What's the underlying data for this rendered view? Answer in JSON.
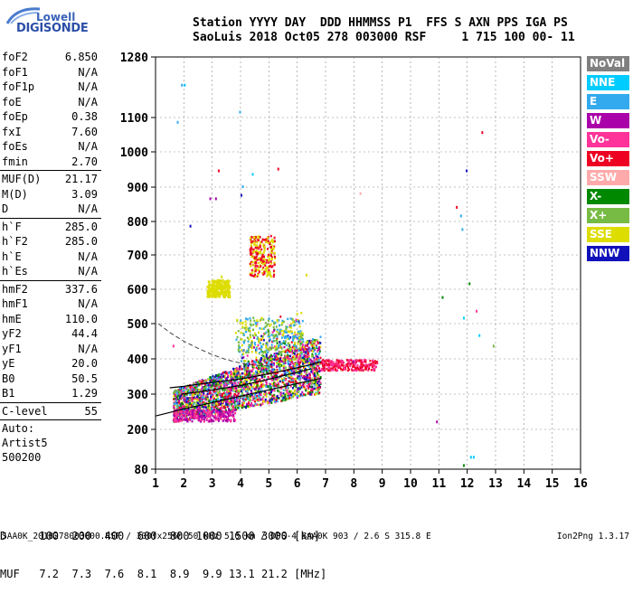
{
  "logo": {
    "line1": "Lowell",
    "line2": "DIGISONDE"
  },
  "header": {
    "line1": "Station YYYY DAY  DDD HHMMSS P1  FFS S AXN PPS IGA PS",
    "line2": "SaoLuis 2018 Oct05 278 003000 RSF     1 715 100 00- 11"
  },
  "params": [
    {
      "group": [
        [
          "foF2",
          "6.850"
        ],
        [
          "foF1",
          "N/A"
        ],
        [
          "foF1p",
          "N/A"
        ],
        [
          "foE",
          "N/A"
        ],
        [
          "foEp",
          "0.38"
        ],
        [
          "fxI",
          "7.60"
        ],
        [
          "foEs",
          "N/A"
        ],
        [
          "fmin",
          "2.70"
        ]
      ]
    },
    {
      "group": [
        [
          "MUF(D)",
          "21.17"
        ],
        [
          "M(D)",
          "3.09"
        ],
        [
          "D",
          "N/A"
        ]
      ]
    },
    {
      "group": [
        [
          "h`F",
          "285.0"
        ],
        [
          "h`F2",
          "285.0"
        ],
        [
          "h`E",
          "N/A"
        ],
        [
          "h`Es",
          "N/A"
        ]
      ]
    },
    {
      "group": [
        [
          "hmF2",
          "337.6"
        ],
        [
          "hmF1",
          "N/A"
        ],
        [
          "hmE",
          "110.0"
        ],
        [
          "yF2",
          "44.4"
        ],
        [
          "yF1",
          "N/A"
        ],
        [
          "yE",
          "20.0"
        ],
        [
          "B0",
          "50.5"
        ],
        [
          "B1",
          "1.29"
        ]
      ]
    },
    {
      "group": [
        [
          "C-level",
          "55"
        ]
      ]
    }
  ],
  "auto": {
    "line1": "Auto:",
    "line2": "Artist5",
    "line3": "500200"
  },
  "legend": [
    {
      "label": "NoVal",
      "color": "#808080"
    },
    {
      "label": "NNE",
      "color": "#00ccff"
    },
    {
      "label": "E",
      "color": "#33aaee"
    },
    {
      "label": "W",
      "color": "#aa00aa"
    },
    {
      "label": "Vo-",
      "color": "#ff3399"
    },
    {
      "label": "Vo+",
      "color": "#ee0022"
    },
    {
      "label": "SSW",
      "color": "#ffaaaa"
    },
    {
      "label": "X-",
      "color": "#008800"
    },
    {
      "label": "X+",
      "color": "#77bb44"
    },
    {
      "label": "SSE",
      "color": "#dddd00"
    },
    {
      "label": "NNW",
      "color": "#1111bb"
    }
  ],
  "muf_table": {
    "row1": "D     100  200  400  600  800 1000 1500 3000 [km]",
    "row2": "MUF   7.2  7.3  7.6  8.1  8.9  9.9 13.1 21.2 [MHz]"
  },
  "footer": {
    "left": "SAA0K_2018278003000.RSF / 300fx256h 50 kHz 5.0 km / DPS-4 SAA0K 903 / 2.6 S 315.8 E",
    "right": "Ion2Png 1.3.17"
  },
  "chart_data": {
    "type": "scatter",
    "title": "",
    "xlabel": "",
    "ylabel": "",
    "x_ticks": [
      "1",
      "2",
      "3",
      "4",
      "5",
      "6",
      "7",
      "8",
      "9",
      "10",
      "11",
      "12",
      "13",
      "14",
      "15",
      "16"
    ],
    "y_ticks": [
      "80",
      "200",
      "300",
      "400",
      "500",
      "600",
      "700",
      "800",
      "900",
      "1000",
      "1100",
      "1280"
    ],
    "x_tick_values": [
      1,
      2,
      3,
      4,
      5,
      6,
      7,
      8,
      9,
      10,
      11,
      12,
      13,
      14,
      15,
      16
    ],
    "y_tick_values": [
      80,
      200,
      300,
      400,
      500,
      600,
      700,
      800,
      900,
      1000,
      1100,
      1280
    ],
    "xlim": [
      1,
      16
    ],
    "ylim": [
      80,
      1280
    ],
    "grid": "dashed",
    "o_trace": [
      [
        1.9,
        300
      ],
      [
        2.5,
        306
      ],
      [
        3,
        312
      ],
      [
        3.5,
        318
      ],
      [
        4,
        325
      ],
      [
        4.5,
        333
      ],
      [
        5,
        342
      ],
      [
        5.5,
        352
      ],
      [
        6,
        362
      ],
      [
        6.5,
        372
      ]
    ],
    "x_trace": [
      [
        1.5,
        318
      ],
      [
        2,
        322
      ],
      [
        2.5,
        328
      ],
      [
        3,
        333
      ],
      [
        3.5,
        338
      ],
      [
        4,
        343
      ],
      [
        4.5,
        350
      ],
      [
        5,
        358
      ],
      [
        5.5,
        366
      ],
      [
        6,
        375
      ],
      [
        6.5,
        384
      ],
      [
        6.85,
        392
      ]
    ],
    "profile": [
      [
        1,
        238
      ],
      [
        2,
        258
      ],
      [
        3,
        276
      ],
      [
        4,
        294
      ],
      [
        5,
        312
      ],
      [
        6,
        330
      ],
      [
        6.85,
        345
      ]
    ],
    "dashed_curve": [
      [
        1.1,
        500
      ],
      [
        1.5,
        475
      ],
      [
        2,
        450
      ],
      [
        2.5,
        430
      ],
      [
        3,
        412
      ],
      [
        3.5,
        398
      ],
      [
        4,
        388
      ],
      [
        4.5,
        382
      ],
      [
        5,
        380
      ]
    ],
    "echo_clusters": [
      {
        "x_range": [
          1.6,
          6.8
        ],
        "y_range": [
          230,
          420
        ],
        "density": "high",
        "colors": [
          "#ff3399",
          "#ee0022",
          "#dddd00",
          "#aa00aa",
          "#1111bb",
          "#77bb44",
          "#008800",
          "#33aaee"
        ]
      },
      {
        "x_range": [
          3.8,
          6.2
        ],
        "y_range": [
          420,
          520
        ],
        "density": "medium",
        "colors": [
          "#dddd00",
          "#33aaee",
          "#77bb44"
        ]
      },
      {
        "x_range": [
          2.8,
          3.6
        ],
        "y_range": [
          580,
          630
        ],
        "density": "medium",
        "colors": [
          "#dddd00"
        ]
      },
      {
        "x_range": [
          4.3,
          5.2
        ],
        "y_range": [
          640,
          760
        ],
        "density": "medium",
        "colors": [
          "#dddd00",
          "#ee0022"
        ]
      },
      {
        "x_range": [
          6.8,
          8.8
        ],
        "y_range": [
          370,
          400
        ],
        "density": "medium",
        "colors": [
          "#ff3399",
          "#ee0022"
        ]
      },
      {
        "x_range": [
          1.6,
          3.8
        ],
        "y_range": [
          225,
          260
        ],
        "density": "medium",
        "colors": [
          "#aa00aa",
          "#ff3399"
        ]
      }
    ]
  }
}
